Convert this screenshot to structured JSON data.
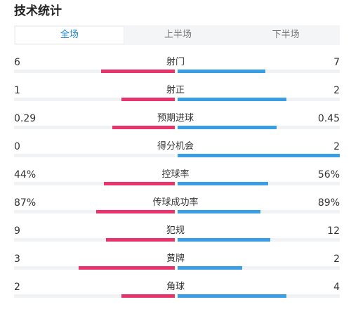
{
  "header": {
    "title": "技术统计"
  },
  "tabs": [
    {
      "label": "全场",
      "active": true
    },
    {
      "label": "上半场",
      "active": false
    },
    {
      "label": "下半场",
      "active": false
    }
  ],
  "colors": {
    "home": "#e8336d",
    "away": "#3a9ee5",
    "active_tab": "#1e8ad6"
  },
  "stats": [
    {
      "label": "射门",
      "home": "6",
      "away": "7",
      "home_fill": 0.46,
      "away_fill": 0.54
    },
    {
      "label": "射正",
      "home": "1",
      "away": "2",
      "home_fill": 0.33,
      "away_fill": 0.67
    },
    {
      "label": "预期进球",
      "home": "0.29",
      "away": "0.45",
      "home_fill": 0.39,
      "away_fill": 0.61
    },
    {
      "label": "得分机会",
      "home": "0",
      "away": "2",
      "home_fill": 0.0,
      "away_fill": 1.0
    },
    {
      "label": "控球率",
      "home": "44%",
      "away": "56%",
      "home_fill": 0.44,
      "away_fill": 0.56
    },
    {
      "label": "传球成功率",
      "home": "87%",
      "away": "89%",
      "home_fill": 0.49,
      "away_fill": 0.51
    },
    {
      "label": "犯规",
      "home": "9",
      "away": "12",
      "home_fill": 0.43,
      "away_fill": 0.57
    },
    {
      "label": "黄牌",
      "home": "3",
      "away": "2",
      "home_fill": 0.6,
      "away_fill": 0.4
    },
    {
      "label": "角球",
      "home": "2",
      "away": "4",
      "home_fill": 0.33,
      "away_fill": 0.67
    }
  ]
}
